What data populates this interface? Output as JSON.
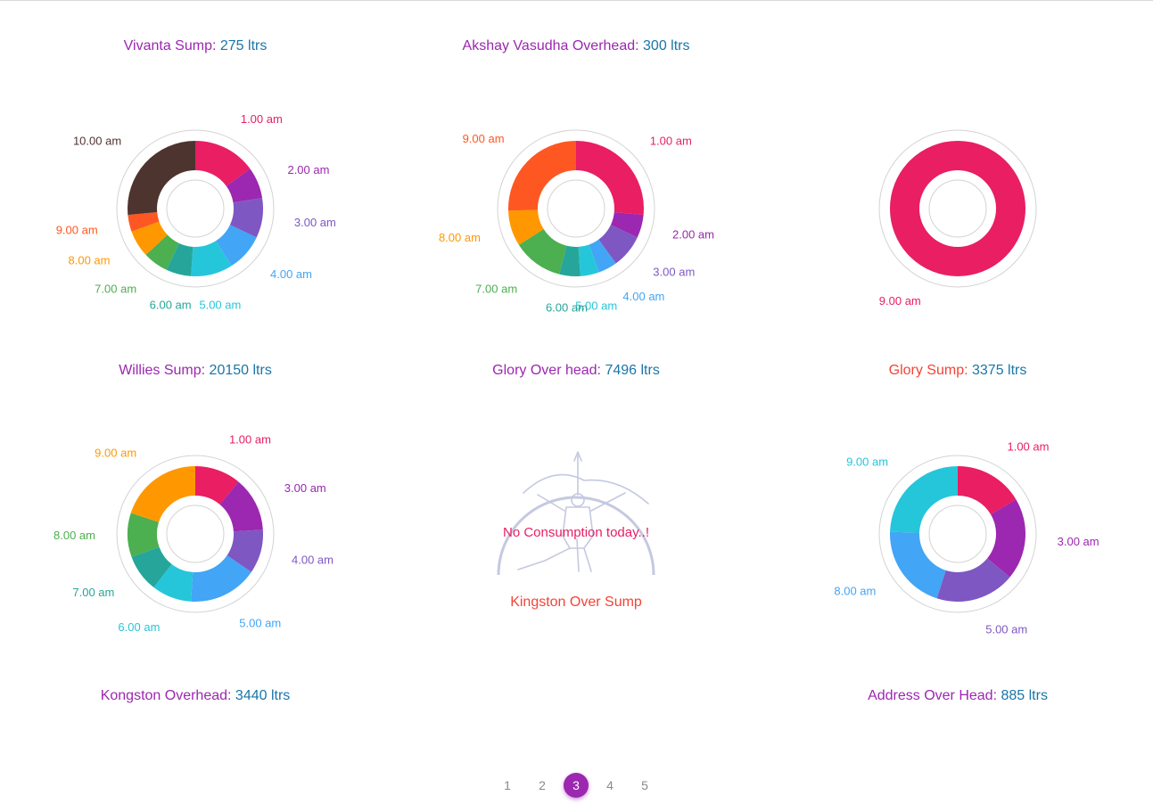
{
  "chart_data": [
    {
      "type": "pie",
      "variant": "donut",
      "name": "Vivanta Sump",
      "total": "275 ltrs",
      "categories": [
        "1.00 am",
        "2.00 am",
        "3.00 am",
        "4.00 am",
        "5.00 am",
        "6.00 am",
        "7.00 am",
        "8.00 am",
        "9.00 am",
        "10.00 am"
      ],
      "values": [
        15,
        7.5,
        9.5,
        9,
        10,
        6,
        6,
        6.5,
        4,
        26.5
      ],
      "colors": [
        "#e91e63",
        "#9c27b0",
        "#7e57c2",
        "#42a5f5",
        "#26c6da",
        "#26a69a",
        "#4caf50",
        "#ff9800",
        "#ff5722",
        "#4e342e"
      ]
    },
    {
      "type": "pie",
      "variant": "donut",
      "name": "Akshay Vasudha Overhead",
      "total": "300 ltrs",
      "categories": [
        "1.00 am",
        "2.00 am",
        "3.00 am",
        "4.00 am",
        "5.00 am",
        "6.00 am",
        "7.00 am",
        "8.00 am",
        "9.00 am"
      ],
      "values": [
        26.5,
        5.5,
        8,
        4.5,
        4.5,
        5,
        12,
        8.5,
        25.5
      ],
      "colors": [
        "#e91e63",
        "#9c27b0",
        "#7e57c2",
        "#42a5f5",
        "#26c6da",
        "#26a69a",
        "#4caf50",
        "#ff9800",
        "#ff5722"
      ]
    },
    {
      "type": "pie",
      "variant": "donut",
      "name": "",
      "total": "",
      "categories": [
        "9.00 am"
      ],
      "values": [
        100
      ],
      "colors": [
        "#e91e63"
      ]
    },
    {
      "type": "pie",
      "variant": "donut",
      "name": "Willies Sump",
      "total": "20150 ltrs",
      "categories": [
        "1.00 am",
        "3.00 am",
        "4.00 am",
        "5.00 am",
        "6.00 am",
        "7.00 am",
        "8.00 am",
        "9.00 am"
      ],
      "values": [
        11,
        13,
        10.5,
        16.5,
        9.5,
        9,
        10.5,
        20
      ],
      "colors": [
        "#e91e63",
        "#9c27b0",
        "#7e57c2",
        "#42a5f5",
        "#26c6da",
        "#26a69a",
        "#4caf50",
        "#ff9800"
      ]
    },
    {
      "type": "pie",
      "variant": "donut",
      "name": "Glory Sump",
      "total": "3375 ltrs",
      "categories": [
        "1.00 am",
        "3.00 am",
        "5.00 am",
        "8.00 am",
        "9.00 am"
      ],
      "values": [
        16.5,
        19.5,
        19,
        20.5,
        24.5
      ],
      "colors": [
        "#e91e63",
        "#9c27b0",
        "#7e57c2",
        "#42a5f5",
        "#26c6da"
      ]
    }
  ],
  "titles": {
    "vivanta": {
      "name": "Vivanta Sump: ",
      "value": "275 ltrs"
    },
    "akshay": {
      "name": "Akshay Vasudha Overhead: ",
      "value": "300 ltrs"
    },
    "willies": {
      "name": "Willies Sump: ",
      "value": "20150 ltrs"
    },
    "glory_overhead": {
      "name": "Glory Over head: ",
      "value": "7496 ltrs"
    },
    "glory_sump": {
      "name": "Glory Sump: ",
      "value": "3375 ltrs"
    },
    "kongston": {
      "name": "Kongston Overhead: ",
      "value": "3440 ltrs"
    },
    "address": {
      "name": "Address Over Head: ",
      "value": "885 ltrs"
    }
  },
  "no_data": {
    "message": "No Consumption today..!",
    "name": "Kingston Over Sump",
    "icon": "archer-logo-icon"
  },
  "pagination": {
    "pages": [
      "1",
      "2",
      "3",
      "4",
      "5"
    ],
    "active": "3"
  }
}
